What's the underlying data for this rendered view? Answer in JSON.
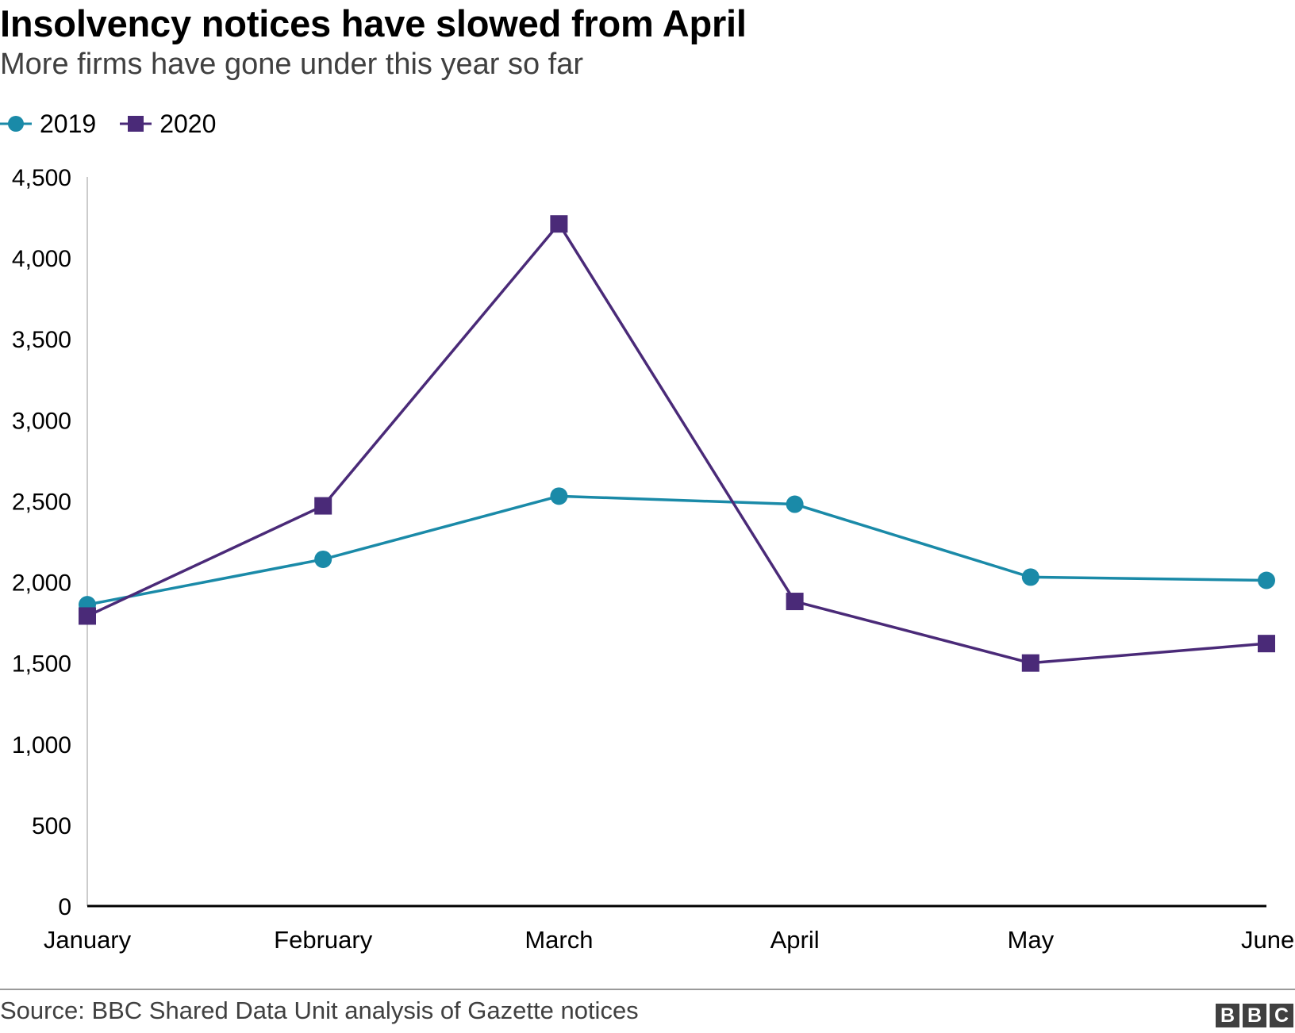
{
  "title": "Insolvency notices have slowed from April",
  "subtitle": "More firms have gone under this year so far",
  "source": "Source: BBC Shared Data Unit analysis of Gazette notices",
  "logo": {
    "letters": [
      "B",
      "B",
      "C"
    ]
  },
  "colors": {
    "series_2019": "#1a8aa8",
    "series_2020": "#4a2a78",
    "axis": "#000000",
    "gridline": "#cccccc",
    "text": "#000000"
  },
  "chart_data": {
    "type": "line",
    "categories": [
      "January",
      "February",
      "March",
      "April",
      "May",
      "June"
    ],
    "series": [
      {
        "name": "2019",
        "marker": "circle",
        "values": [
          1860,
          2140,
          2530,
          2480,
          2030,
          2010
        ]
      },
      {
        "name": "2020",
        "marker": "square",
        "values": [
          1790,
          2470,
          4210,
          1880,
          1500,
          1620
        ]
      }
    ],
    "ylim": [
      0,
      4500
    ],
    "yticks": [
      0,
      500,
      1000,
      1500,
      2000,
      2500,
      3000,
      3500,
      4000,
      4500
    ],
    "ytick_labels": [
      "0",
      "500",
      "1,000",
      "1,500",
      "2,000",
      "2,500",
      "3,000",
      "3,500",
      "4,000",
      "4,500"
    ],
    "grid": false,
    "legend_position": "top-left"
  }
}
